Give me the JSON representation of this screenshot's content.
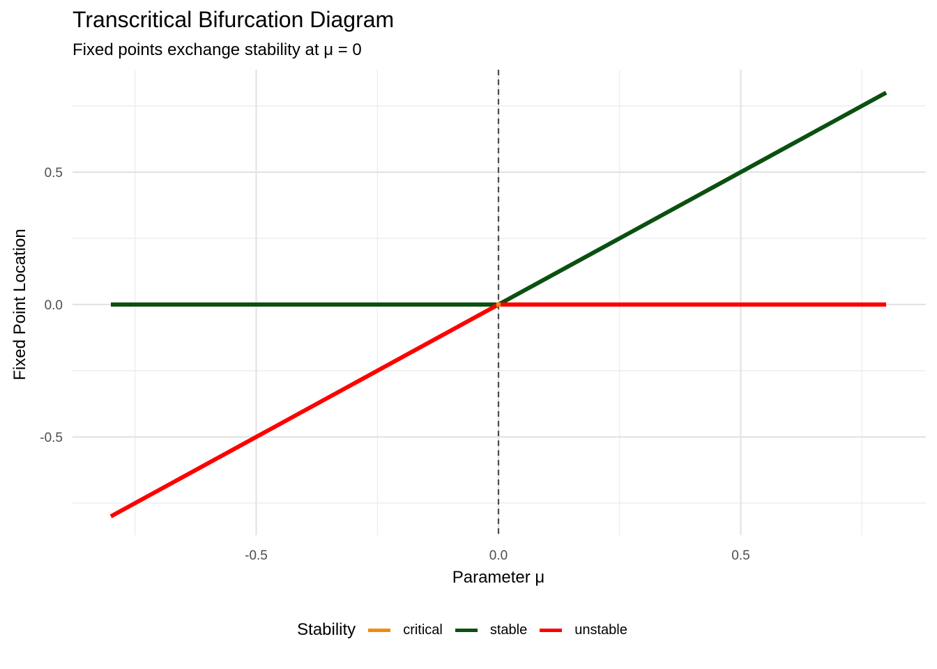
{
  "chart_data": {
    "type": "line",
    "title": "Transcritical Bifurcation Diagram",
    "subtitle": "Fixed points exchange stability at μ = 0",
    "xlabel": "Parameter μ",
    "ylabel": "Fixed Point Location",
    "xlim": [
      -0.8,
      0.8
    ],
    "ylim": [
      -0.8,
      0.8
    ],
    "x_ticks": [
      -0.5,
      0.0,
      0.5
    ],
    "x_tick_labels": [
      "-0.5",
      "0.0",
      "0.5"
    ],
    "y_ticks": [
      -0.5,
      0.0,
      0.5
    ],
    "y_tick_labels": [
      "-0.5",
      "0.0",
      "0.5"
    ],
    "grid": true,
    "reference_line": {
      "x": 0,
      "style": "dashed"
    },
    "legend": {
      "title": "Stability",
      "placement": "bottom",
      "entries": [
        {
          "label": "critical",
          "color": "#f28c0f"
        },
        {
          "label": "stable",
          "color": "#0b5010"
        },
        {
          "label": "unstable",
          "color": "#ff0000"
        }
      ]
    },
    "series": [
      {
        "name": "stable",
        "color": "#0b5010",
        "segments": [
          {
            "x": [
              -0.8,
              0.0
            ],
            "y": [
              0.0,
              0.0
            ]
          },
          {
            "x": [
              0.0,
              0.8
            ],
            "y": [
              0.0,
              0.8
            ]
          }
        ]
      },
      {
        "name": "unstable",
        "color": "#ff0000",
        "segments": [
          {
            "x": [
              -0.8,
              0.0
            ],
            "y": [
              -0.8,
              0.0
            ]
          },
          {
            "x": [
              0.0,
              0.8
            ],
            "y": [
              0.0,
              0.0
            ]
          }
        ]
      },
      {
        "name": "critical",
        "color": "#f28c0f",
        "points": [
          {
            "x": 0.0,
            "y": 0.0
          }
        ]
      }
    ]
  }
}
